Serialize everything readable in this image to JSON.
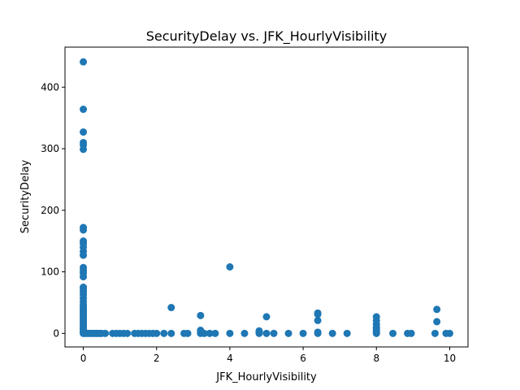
{
  "chart_data": {
    "type": "scatter",
    "title": "SecurityDelay vs. JFK_HourlyVisibility",
    "xlabel": "JFK_HourlyVisibility",
    "ylabel": "SecurityDelay",
    "xlim": [
      -0.5,
      10.5
    ],
    "ylim": [
      -22,
      465
    ],
    "xticks": [
      0,
      2,
      4,
      6,
      8,
      10
    ],
    "yticks": [
      0,
      100,
      200,
      300,
      400
    ],
    "grid": false,
    "legend": "none",
    "marker_color": "#1f77b4",
    "points": [
      [
        0,
        441
      ],
      [
        0,
        364
      ],
      [
        0,
        327
      ],
      [
        0,
        310
      ],
      [
        0,
        306
      ],
      [
        0,
        299
      ],
      [
        0,
        172
      ],
      [
        0,
        168
      ],
      [
        0,
        150
      ],
      [
        0,
        146
      ],
      [
        0,
        140
      ],
      [
        0,
        133
      ],
      [
        0,
        127
      ],
      [
        0,
        107
      ],
      [
        0,
        102
      ],
      [
        0,
        98
      ],
      [
        0,
        92
      ],
      [
        0,
        75
      ],
      [
        0,
        72
      ],
      [
        0,
        68
      ],
      [
        0,
        63
      ],
      [
        0,
        57
      ],
      [
        0,
        52
      ],
      [
        0,
        47
      ],
      [
        0,
        43
      ],
      [
        0,
        40
      ],
      [
        0,
        37
      ],
      [
        0,
        34
      ],
      [
        0,
        31
      ],
      [
        0,
        28
      ],
      [
        0,
        25
      ],
      [
        0,
        22
      ],
      [
        0,
        19
      ],
      [
        0,
        16
      ],
      [
        0,
        13
      ],
      [
        0,
        10
      ],
      [
        0,
        8
      ],
      [
        0,
        6
      ],
      [
        0,
        4
      ],
      [
        0,
        2
      ],
      [
        0,
        0
      ],
      [
        0.05,
        0
      ],
      [
        0.1,
        0
      ],
      [
        0.15,
        0
      ],
      [
        0.2,
        0
      ],
      [
        0.25,
        0
      ],
      [
        0.3,
        0
      ],
      [
        0.35,
        0
      ],
      [
        0.4,
        0
      ],
      [
        0.45,
        0
      ],
      [
        0.5,
        0
      ],
      [
        0.6,
        0
      ],
      [
        0.8,
        0
      ],
      [
        0.9,
        0
      ],
      [
        1.0,
        0
      ],
      [
        1.1,
        0
      ],
      [
        1.2,
        0
      ],
      [
        1.4,
        0
      ],
      [
        1.5,
        0
      ],
      [
        1.6,
        0
      ],
      [
        1.7,
        0
      ],
      [
        1.8,
        0
      ],
      [
        1.9,
        0
      ],
      [
        2.0,
        0
      ],
      [
        2.2,
        0
      ],
      [
        2.4,
        0
      ],
      [
        2.4,
        42
      ],
      [
        2.75,
        0
      ],
      [
        2.85,
        0
      ],
      [
        3.2,
        0
      ],
      [
        3.2,
        2
      ],
      [
        3.2,
        5
      ],
      [
        3.2,
        29
      ],
      [
        3.3,
        0
      ],
      [
        3.45,
        0
      ],
      [
        3.6,
        0
      ],
      [
        4.0,
        0
      ],
      [
        4.0,
        108
      ],
      [
        4.4,
        0
      ],
      [
        4.8,
        0
      ],
      [
        4.8,
        2
      ],
      [
        4.8,
        4
      ],
      [
        5.0,
        0
      ],
      [
        5.0,
        27
      ],
      [
        5.2,
        0
      ],
      [
        5.6,
        0
      ],
      [
        6.0,
        0
      ],
      [
        6.4,
        0
      ],
      [
        6.4,
        2
      ],
      [
        6.4,
        21
      ],
      [
        6.4,
        31
      ],
      [
        6.4,
        33
      ],
      [
        6.8,
        0
      ],
      [
        7.2,
        0
      ],
      [
        8.0,
        0
      ],
      [
        8.0,
        2
      ],
      [
        8.0,
        4
      ],
      [
        8.0,
        7
      ],
      [
        8.0,
        10
      ],
      [
        8.0,
        15
      ],
      [
        8.0,
        21
      ],
      [
        8.0,
        27
      ],
      [
        8.45,
        0
      ],
      [
        8.85,
        0
      ],
      [
        8.95,
        0
      ],
      [
        9.6,
        0
      ],
      [
        9.65,
        19
      ],
      [
        9.65,
        39
      ],
      [
        9.9,
        0
      ],
      [
        10.0,
        0
      ]
    ]
  }
}
